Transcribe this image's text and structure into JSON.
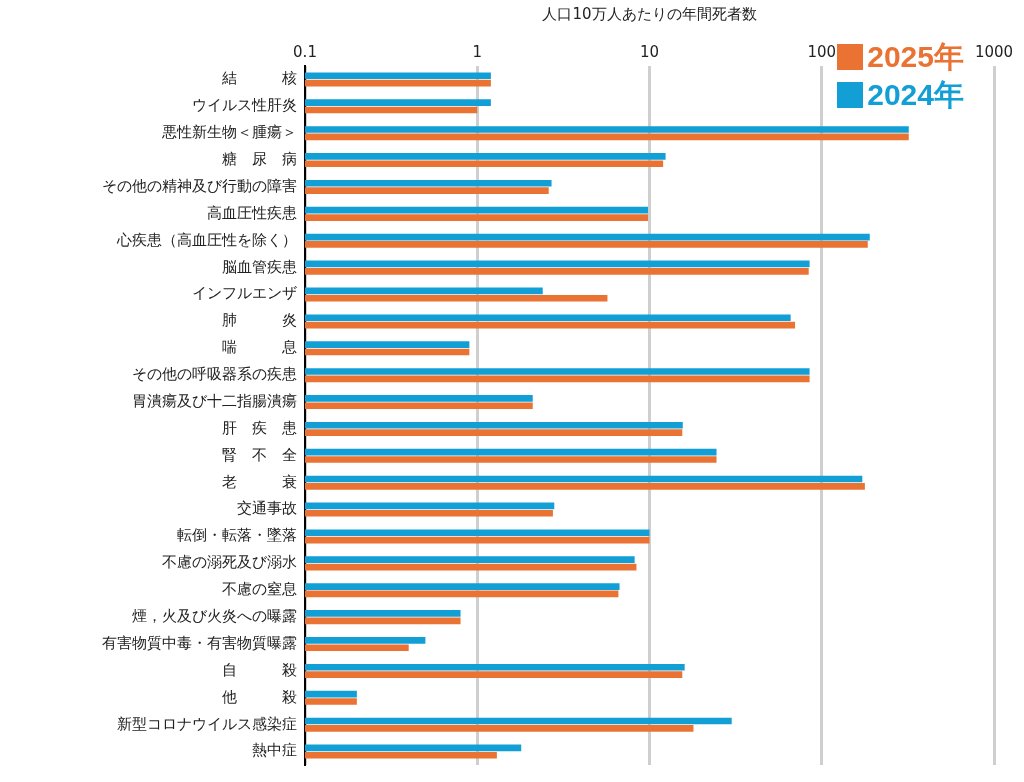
{
  "chart_data": {
    "type": "bar",
    "orientation": "horizontal",
    "log": "x",
    "xlabel": "人口10万人あたりの年間死者数",
    "categories": [
      "結　　　核",
      "ウイルス性肝炎",
      "悪性新生物＜腫瘍＞",
      "糖　尿　病",
      "その他の精神及び行動の障害",
      "高血圧性疾患",
      "心疾患（高血圧性を除く）",
      "脳血管疾患",
      "インフルエンザ",
      "肺　　　炎",
      "喘　　　息",
      "その他の呼吸器系の疾患",
      "胃潰瘍及び十二指腸潰瘍",
      "肝　疾　患",
      "腎　不　全",
      "老　　　衰",
      "交通事故",
      "転倒・転落・墜落",
      "不慮の溺死及び溺水",
      "不慮の窒息",
      "煙，火及び火炎への曝露",
      "有害物質中毒・有害物質曝露",
      "自　　　殺",
      "他　　　殺",
      "新型コロナウイルス感染症",
      "熱中症"
    ],
    "series": [
      {
        "name": "2024年",
        "color": "#119fd6",
        "values": [
          1.2,
          1.2,
          320,
          12.4,
          2.7,
          9.8,
          190,
          85,
          2.4,
          66,
          0.9,
          85,
          2.1,
          15.6,
          24.5,
          172,
          2.8,
          10,
          8.2,
          6.7,
          0.8,
          0.5,
          16,
          0.2,
          30,
          1.8
        ]
      },
      {
        "name": "2025年",
        "color": "#ea7333",
        "values": [
          1.2,
          1.0,
          320,
          12,
          2.6,
          9.8,
          185,
          84,
          5.7,
          70,
          0.9,
          85,
          2.1,
          15.5,
          24.5,
          178,
          2.75,
          10,
          8.4,
          6.6,
          0.8,
          0.4,
          15.5,
          0.2,
          18,
          1.3
        ]
      }
    ],
    "xlim": [
      0.1,
      1000
    ],
    "xticks": [
      0.1,
      1,
      10,
      100,
      1000
    ],
    "grid": "x",
    "legend": "top right"
  }
}
